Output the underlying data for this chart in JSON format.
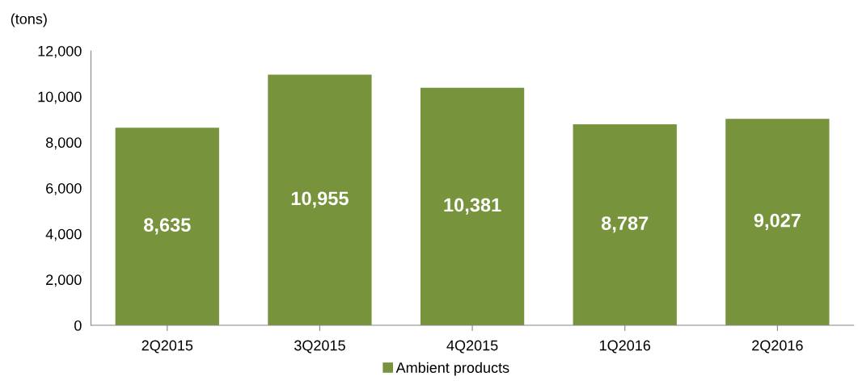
{
  "chart_data": {
    "type": "bar",
    "ylabel": "(tons)",
    "categories": [
      "2Q2015",
      "3Q2015",
      "4Q2015",
      "1Q2016",
      "2Q2016"
    ],
    "series": [
      {
        "name": "Ambient products",
        "color": "#77933c",
        "values": [
          8635,
          10955,
          10381,
          8787,
          9027
        ],
        "value_labels": [
          "8,635",
          "10,955",
          "10,381",
          "8,787",
          "9,027"
        ]
      }
    ],
    "ylim": [
      0,
      12000
    ],
    "yticks": [
      0,
      {
        "value": 2000,
        "label": "2,000"
      },
      {
        "value": 4000,
        "label": "4,000"
      },
      {
        "value": 6000,
        "label": "6,000"
      },
      {
        "value": 8000,
        "label": "8,000"
      },
      {
        "value": 10000,
        "label": "10,000"
      },
      {
        "value": 12000,
        "label": "12,000"
      }
    ],
    "grid": false,
    "legend": "bottom"
  }
}
